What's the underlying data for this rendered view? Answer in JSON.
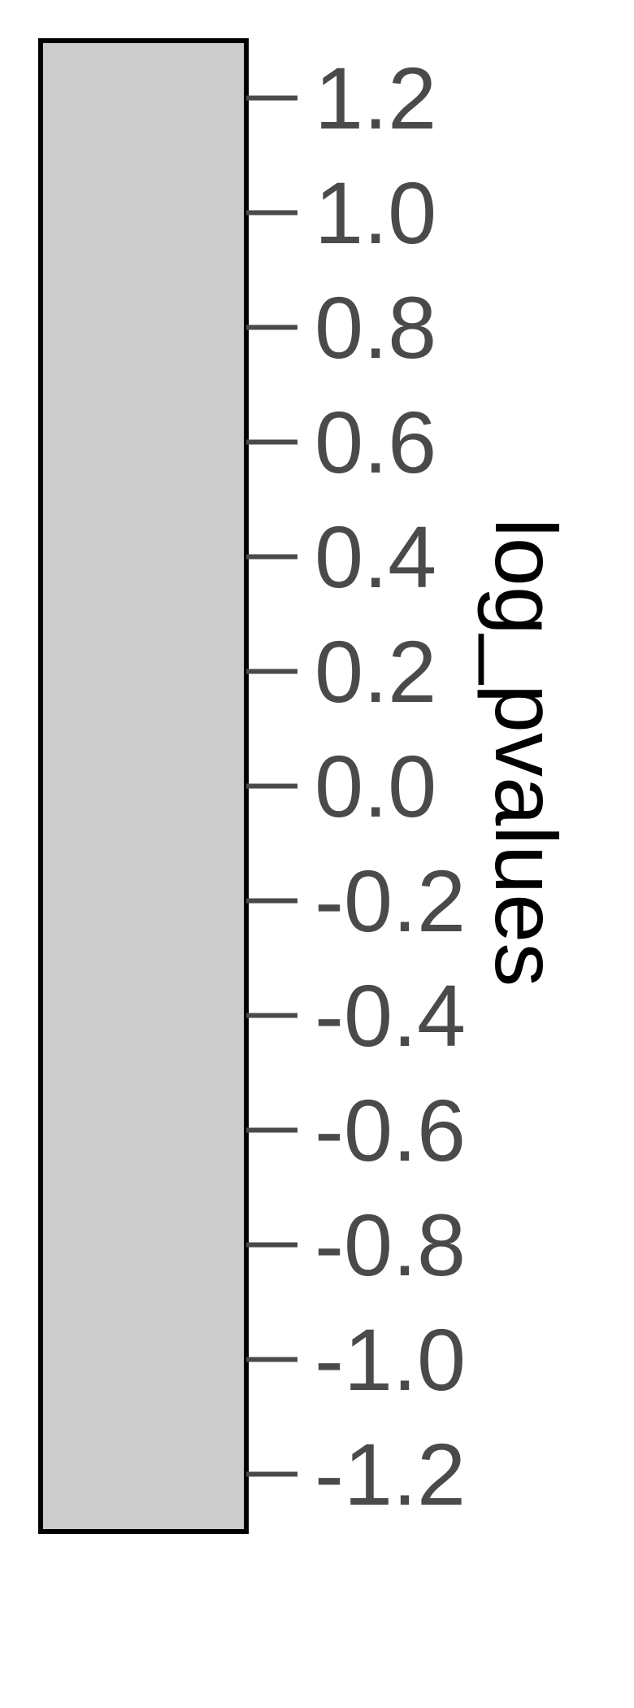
{
  "chart_data": {
    "type": "colorbar",
    "orientation": "vertical",
    "label": "log_pvalues",
    "ylim": [
      -1.3,
      1.3
    ],
    "ticks": [
      1.2,
      1.0,
      0.8,
      0.6,
      0.4,
      0.2,
      0.0,
      -0.2,
      -0.4,
      -0.6,
      -0.8,
      -1.0,
      -1.2
    ],
    "tick_labels": [
      "1.2",
      "1.0",
      "0.8",
      "0.6",
      "0.4",
      "0.2",
      "0.0",
      "-0.2",
      "-0.4",
      "-0.6",
      "-0.8",
      "-1.0",
      "-1.2"
    ],
    "fill_color": "#cccccc",
    "outline_color": "#000000",
    "tick_color": "#4a4a4a"
  }
}
